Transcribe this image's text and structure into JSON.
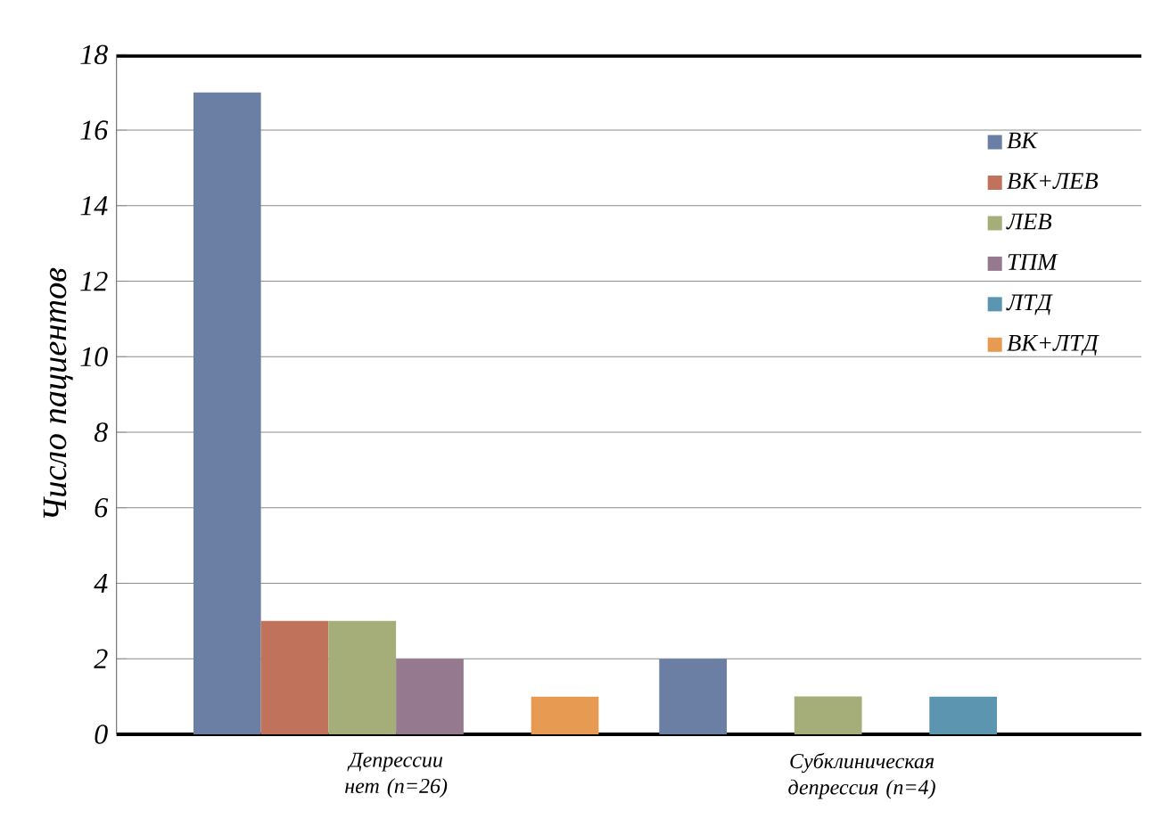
{
  "chart_data": {
    "type": "bar",
    "ylabel": "Число пациентов",
    "categories": [
      "Депрессии нет (n=26)",
      "Субклиническая депрессия (n=4)"
    ],
    "series": [
      {
        "name": "ВК",
        "color": "#6a7fa3",
        "values": [
          17,
          2
        ]
      },
      {
        "name": "ВК+ЛЕВ",
        "color": "#c0735a",
        "values": [
          3,
          0
        ]
      },
      {
        "name": "ЛЕВ",
        "color": "#a5ad78",
        "values": [
          3,
          1
        ]
      },
      {
        "name": "ТПМ",
        "color": "#957a8f",
        "values": [
          2,
          0
        ]
      },
      {
        "name": "ЛТД",
        "color": "#5b95b0",
        "values": [
          0,
          1
        ]
      },
      {
        "name": "ВК+ЛТД",
        "color": "#e79b52",
        "values": [
          1,
          0
        ]
      }
    ],
    "ylim": [
      0,
      18
    ],
    "yticks": [
      0,
      2,
      4,
      6,
      8,
      10,
      12,
      14,
      16,
      18
    ],
    "grid": "y",
    "legend": "top right"
  }
}
